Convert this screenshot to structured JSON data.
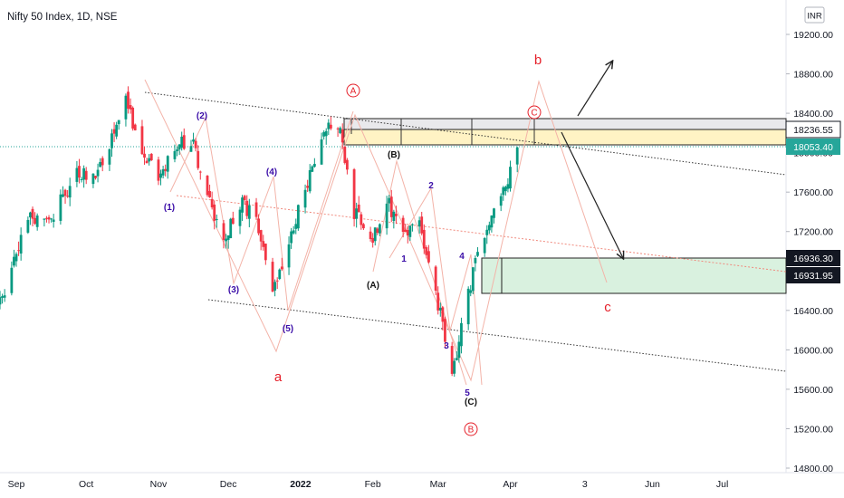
{
  "header": {
    "title": "Nifty 50 Index, 1D, NSE",
    "currency": "INR"
  },
  "colors": {
    "candle_up": "#089981",
    "candle_down": "#f23645",
    "wave_red": "#e5202a",
    "wave_purple": "#3b0ea8",
    "price_badge": "#26a69a",
    "zone_yellow": "#fff3c4",
    "zone_green": "#d9f1df"
  },
  "chart_data": {
    "type": "candlestick",
    "title": "Nifty 50 Index, 1D, NSE",
    "y_unit": "INR",
    "ylim": [
      14800,
      19200
    ],
    "y_ticks": [
      "19200.00",
      "18800.00",
      "18400.00",
      "18000.00",
      "17600.00",
      "17200.00",
      "16800.00",
      "16400.00",
      "16000.00",
      "15600.00",
      "15200.00",
      "14800.00"
    ],
    "x_ticks": [
      "Sep",
      "Oct",
      "Nov",
      "Dec",
      "2022",
      "Feb",
      "Mar",
      "Apr",
      "3",
      "Jun",
      "Jul"
    ],
    "grid": false,
    "price_badges": [
      {
        "value": "18236.55",
        "style": "outline"
      },
      {
        "value": "18053.40",
        "style": "last-price"
      },
      {
        "value": "16936.30",
        "style": "dark"
      },
      {
        "value": "16931.95",
        "style": "dark"
      }
    ],
    "ohlc_path": [
      {
        "date": "2021-08-25",
        "close": 16500
      },
      {
        "date": "2021-08-31",
        "close": 16900
      },
      {
        "date": "2021-09-07",
        "close": 17350
      },
      {
        "date": "2021-09-14",
        "close": 17300
      },
      {
        "date": "2021-09-20",
        "close": 17500
      },
      {
        "date": "2021-09-27",
        "close": 17800
      },
      {
        "date": "2021-10-04",
        "close": 17750
      },
      {
        "date": "2021-10-11",
        "close": 18050
      },
      {
        "date": "2021-10-18",
        "close": 18500
      },
      {
        "date": "2021-10-25",
        "close": 18000
      },
      {
        "date": "2021-11-01",
        "close": 17750
      },
      {
        "date": "2021-11-08",
        "close": 18050
      },
      {
        "date": "2021-11-15",
        "close": 18150
      },
      {
        "date": "2021-11-22",
        "close": 17600
      },
      {
        "date": "2021-11-29",
        "close": 17100
      },
      {
        "date": "2021-12-06",
        "close": 17500
      },
      {
        "date": "2021-12-13",
        "close": 17300
      },
      {
        "date": "2021-12-20",
        "close": 16600
      },
      {
        "date": "2021-12-27",
        "close": 17100
      },
      {
        "date": "2022-01-03",
        "close": 17600
      },
      {
        "date": "2022-01-10",
        "close": 18200
      },
      {
        "date": "2022-01-17",
        "close": 18300
      },
      {
        "date": "2022-01-24",
        "close": 17400
      },
      {
        "date": "2022-01-31",
        "close": 17100
      },
      {
        "date": "2022-02-07",
        "close": 17500
      },
      {
        "date": "2022-02-14",
        "close": 17200
      },
      {
        "date": "2022-02-21",
        "close": 17300
      },
      {
        "date": "2022-02-28",
        "close": 16600
      },
      {
        "date": "2022-03-07",
        "close": 15700
      },
      {
        "date": "2022-03-14",
        "close": 16600
      },
      {
        "date": "2022-03-21",
        "close": 17200
      },
      {
        "date": "2022-03-28",
        "close": 17500
      },
      {
        "date": "2022-04-04",
        "close": 18053
      }
    ],
    "annotations": {
      "wave_labels_black": [
        "(B)",
        "(A)",
        "(C)"
      ],
      "wave_labels_purple": [
        "(1)",
        "(2)",
        "(3)",
        "(4)",
        "(5)",
        "1",
        "2",
        "3",
        "4",
        "5"
      ],
      "wave_labels_red": [
        "a",
        "b",
        "c"
      ],
      "circled_labels": [
        "A",
        "C",
        "B"
      ]
    }
  }
}
